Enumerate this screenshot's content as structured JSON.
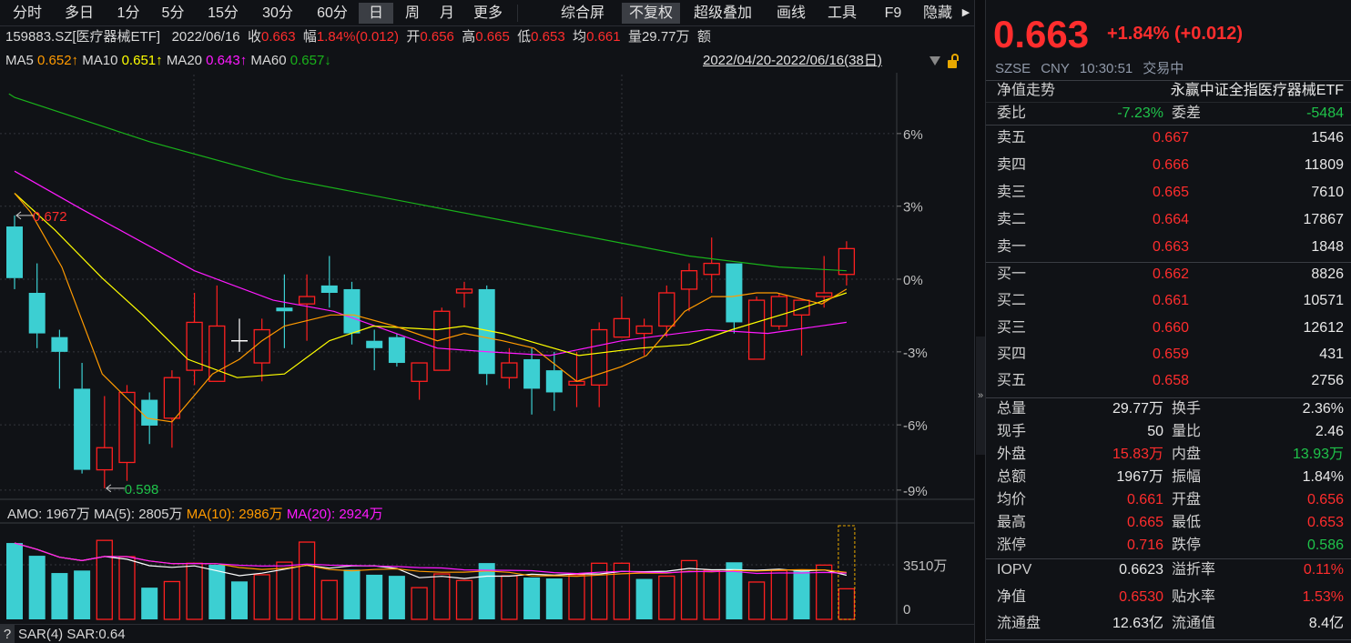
{
  "toolbar": {
    "items": [
      "分时",
      "多日",
      "1分",
      "5分",
      "15分",
      "30分",
      "60分",
      "日",
      "周",
      "月",
      "更多",
      "综合屏",
      "不复权",
      "超级叠加",
      "画线",
      "工具",
      "F9",
      "隐藏"
    ],
    "more_arrow": "▶"
  },
  "info": {
    "code": "159883.SZ[医疗器械ETF]",
    "date": "2022/06/16",
    "close_label": "收",
    "close": "0.663",
    "amp_label": "幅",
    "amp": "1.84%(0.012)",
    "open_label": "开",
    "open": "0.656",
    "high_label": "高",
    "high": "0.665",
    "low_label": "低",
    "low": "0.653",
    "avg_label": "均",
    "avg": "0.661",
    "vol_label": "量",
    "vol": "29.77万",
    "amt_label": "额"
  },
  "ma_legend": [
    {
      "name": "MA5",
      "value": "0.652↑",
      "color": "#ff9a00"
    },
    {
      "name": "MA10",
      "value": "0.651↑",
      "color": "#ffff00"
    },
    {
      "name": "MA20",
      "value": "0.643↑",
      "color": "#ff1aff"
    },
    {
      "name": "MA60",
      "value": "0.657↓",
      "color": "#19b21a"
    }
  ],
  "range_label": "2022/04/20-2022/06/16(38日)",
  "chart_data": {
    "type": "candlestick",
    "ylim": [
      0.5955,
      0.7102
    ],
    "y_ticks": [
      {
        "label": "6%",
        "price": 0.6942
      },
      {
        "label": "3%",
        "price": 0.6745
      },
      {
        "label": "0%",
        "price": 0.6547
      },
      {
        "label": "-3%",
        "price": 0.635
      },
      {
        "label": "-6%",
        "price": 0.6152
      },
      {
        "label": "-9%",
        "price": 0.5975
      }
    ],
    "candles": [
      [
        0.669,
        0.672,
        0.652,
        0.655
      ],
      [
        0.651,
        0.659,
        0.636,
        0.64
      ],
      [
        0.639,
        0.641,
        0.625,
        0.635
      ],
      [
        0.625,
        0.632,
        0.602,
        0.603
      ],
      [
        0.603,
        0.623,
        0.598,
        0.609
      ],
      [
        0.605,
        0.626,
        0.6,
        0.624
      ],
      [
        0.622,
        0.624,
        0.61,
        0.615
      ],
      [
        0.617,
        0.63,
        0.609,
        0.628
      ],
      [
        0.63,
        0.651,
        0.626,
        0.643
      ],
      [
        0.627,
        0.653,
        0.627,
        0.642
      ],
      [
        0.638,
        0.644,
        0.635,
        0.638
      ],
      [
        0.632,
        0.644,
        0.627,
        0.641
      ],
      [
        0.647,
        0.656,
        0.636,
        0.646
      ],
      [
        0.648,
        0.656,
        0.638,
        0.65
      ],
      [
        0.653,
        0.661,
        0.647,
        0.651
      ],
      [
        0.652,
        0.654,
        0.637,
        0.64
      ],
      [
        0.638,
        0.641,
        0.63,
        0.636
      ],
      [
        0.639,
        0.64,
        0.631,
        0.632
      ],
      [
        0.627,
        0.632,
        0.622,
        0.632
      ],
      [
        0.63,
        0.647,
        0.63,
        0.646
      ],
      [
        0.651,
        0.654,
        0.647,
        0.652
      ],
      [
        0.652,
        0.653,
        0.626,
        0.629
      ],
      [
        0.628,
        0.636,
        0.625,
        0.632
      ],
      [
        0.633,
        0.636,
        0.618,
        0.625
      ],
      [
        0.63,
        0.635,
        0.619,
        0.624
      ],
      [
        0.626,
        0.635,
        0.62,
        0.627
      ],
      [
        0.626,
        0.643,
        0.62,
        0.641
      ],
      [
        0.639,
        0.65,
        0.639,
        0.644
      ],
      [
        0.64,
        0.644,
        0.634,
        0.642
      ],
      [
        0.642,
        0.653,
        0.639,
        0.651
      ],
      [
        0.652,
        0.659,
        0.646,
        0.657
      ],
      [
        0.656,
        0.666,
        0.651,
        0.659
      ],
      [
        0.659,
        0.659,
        0.64,
        0.643
      ],
      [
        0.633,
        0.65,
        0.633,
        0.649
      ],
      [
        0.642,
        0.651,
        0.641,
        0.65
      ],
      [
        0.645,
        0.649,
        0.634,
        0.649
      ],
      [
        0.65,
        0.661,
        0.647,
        0.651
      ],
      [
        0.656,
        0.665,
        0.653,
        0.663
      ]
    ],
    "candle_fields": [
      "open",
      "high",
      "low",
      "close"
    ],
    "ma_lines": [
      {
        "name": "MA60",
        "color": "#19b21a",
        "points": [
          [
            -0.25,
            0.705
          ],
          [
            0,
            0.704
          ],
          [
            6,
            0.692
          ],
          [
            12,
            0.682
          ],
          [
            18,
            0.675
          ],
          [
            24,
            0.668
          ],
          [
            30,
            0.661
          ],
          [
            34,
            0.658
          ],
          [
            37,
            0.657
          ]
        ]
      },
      {
        "name": "MA20",
        "color": "#ff1aff",
        "points": [
          [
            0,
            0.684
          ],
          [
            2.9,
            0.674
          ],
          [
            8,
            0.657
          ],
          [
            11.5,
            0.649
          ],
          [
            14.2,
            0.646
          ],
          [
            18.8,
            0.636
          ],
          [
            21.1,
            0.635
          ],
          [
            23.8,
            0.634
          ],
          [
            27,
            0.638
          ],
          [
            30.8,
            0.641
          ],
          [
            33.5,
            0.64
          ],
          [
            37,
            0.643
          ]
        ]
      },
      {
        "name": "MA10",
        "color": "#ffff00",
        "points": [
          [
            0,
            0.678
          ],
          [
            1.8,
            0.668
          ],
          [
            3.9,
            0.655
          ],
          [
            5.7,
            0.645
          ],
          [
            7.7,
            0.633
          ],
          [
            9.9,
            0.628
          ],
          [
            12,
            0.629
          ],
          [
            14,
            0.638
          ],
          [
            15.95,
            0.642
          ],
          [
            18.8,
            0.641
          ],
          [
            20,
            0.642
          ],
          [
            21.7,
            0.64
          ],
          [
            25.1,
            0.634
          ],
          [
            27.8,
            0.636
          ],
          [
            30,
            0.637
          ],
          [
            31.9,
            0.641
          ],
          [
            34.6,
            0.646
          ],
          [
            37,
            0.651
          ]
        ]
      },
      {
        "name": "MA5",
        "color": "#ff9a00",
        "points": [
          [
            0,
            0.678
          ],
          [
            0.7,
            0.673
          ],
          [
            2.1,
            0.658
          ],
          [
            3.9,
            0.629
          ],
          [
            5.9,
            0.617
          ],
          [
            7,
            0.616
          ],
          [
            8.8,
            0.629
          ],
          [
            10,
            0.633
          ],
          [
            11,
            0.638
          ],
          [
            12,
            0.642
          ],
          [
            14.05,
            0.645
          ],
          [
            15.1,
            0.645
          ],
          [
            16.9,
            0.642
          ],
          [
            18.8,
            0.638
          ],
          [
            20,
            0.64
          ],
          [
            21.7,
            0.638
          ],
          [
            23.1,
            0.636
          ],
          [
            25,
            0.627
          ],
          [
            27,
            0.631
          ],
          [
            28.1,
            0.634
          ],
          [
            29.8,
            0.646
          ],
          [
            31,
            0.65
          ],
          [
            31.9,
            0.65
          ],
          [
            33,
            0.651
          ],
          [
            33.9,
            0.651
          ],
          [
            35.9,
            0.648
          ],
          [
            37,
            0.652
          ]
        ]
      }
    ],
    "annotations": {
      "high": {
        "label": "0.672",
        "index": 0,
        "price": 0.672
      },
      "low": {
        "label": "0.598",
        "index": 4,
        "price": 0.598
      }
    },
    "volume": {
      "ylim": [
        0,
        6025
      ],
      "tick_label": "3510万",
      "tick_value": 3510,
      "zero_label": "0",
      "unit": "万",
      "values": [
        4910,
        4090,
        2980,
        3140,
        5080,
        4030,
        2040,
        2430,
        3610,
        3510,
        2440,
        2870,
        3680,
        4970,
        2500,
        3200,
        2870,
        2800,
        2040,
        2920,
        2500,
        3620,
        2800,
        2690,
        2630,
        2870,
        3610,
        3610,
        2600,
        2780,
        3780,
        3160,
        3670,
        2400,
        3140,
        3200,
        3490,
        1967
      ]
    },
    "colors": {
      "up": "#ff2020",
      "down": "#3ccfd2",
      "flat": "#ffffff"
    }
  },
  "amo": {
    "amo": "AMO: 1967万",
    "ma5": "MA(5): 2805万",
    "ma10": "MA(10): 2986万",
    "ma20": "MA(20): 2924万"
  },
  "sar": {
    "q": "?",
    "label": "SAR(4)",
    "value": "SAR:0.64"
  },
  "quote": {
    "price": "0.663",
    "change": "+1.84% (+0.012)",
    "exchange": "SZSE",
    "currency": "CNY",
    "time": "10:30:51",
    "status": "交易中",
    "nav_trend": "净值走势",
    "fund_name": "永赢中证全指医疗器械ETF",
    "weibi_label": "委比",
    "weibi": "-7.23%",
    "weicha_label": "委差",
    "weicha": "-5484"
  },
  "sell": [
    {
      "label": "卖五",
      "price": "0.667",
      "vol": "1546"
    },
    {
      "label": "卖四",
      "price": "0.666",
      "vol": "11809"
    },
    {
      "label": "卖三",
      "price": "0.665",
      "vol": "7610"
    },
    {
      "label": "卖二",
      "price": "0.664",
      "vol": "17867"
    },
    {
      "label": "卖一",
      "price": "0.663",
      "vol": "1848"
    }
  ],
  "buy": [
    {
      "label": "买一",
      "price": "0.662",
      "vol": "8826"
    },
    {
      "label": "买二",
      "price": "0.661",
      "vol": "10571"
    },
    {
      "label": "买三",
      "price": "0.660",
      "vol": "12612"
    },
    {
      "label": "买四",
      "price": "0.659",
      "vol": "431"
    },
    {
      "label": "买五",
      "price": "0.658",
      "vol": "2756"
    }
  ],
  "stats": [
    {
      "l": "总量",
      "lv": "29.77万",
      "lc": "w",
      "r": "换手",
      "rv": "2.36%",
      "rc": "w"
    },
    {
      "l": "现手",
      "lv": "50",
      "lc": "w",
      "r": "量比",
      "rv": "2.46",
      "rc": "w"
    },
    {
      "l": "外盘",
      "lv": "15.83万",
      "lc": "red",
      "r": "内盘",
      "rv": "13.93万",
      "rc": "green"
    },
    {
      "l": "总额",
      "lv": "1967万",
      "lc": "w",
      "r": "振幅",
      "rv": "1.84%",
      "rc": "w"
    },
    {
      "l": "均价",
      "lv": "0.661",
      "lc": "red",
      "r": "开盘",
      "rv": "0.656",
      "rc": "red"
    },
    {
      "l": "最高",
      "lv": "0.665",
      "lc": "red",
      "r": "最低",
      "rv": "0.653",
      "rc": "red"
    },
    {
      "l": "涨停",
      "lv": "0.716",
      "lc": "red",
      "r": "跌停",
      "rv": "0.586",
      "rc": "green"
    }
  ],
  "fund": [
    {
      "l": "IOPV",
      "lv": "0.6623",
      "lc": "w",
      "r": "溢折率",
      "rv": "0.11%",
      "rc": "red"
    },
    {
      "l": "净值",
      "lv": "0.6530",
      "lc": "red",
      "r": "贴水率",
      "rv": "1.53%",
      "rc": "red"
    },
    {
      "l": "流通盘",
      "lv": "12.63亿",
      "lc": "w",
      "r": "流通值",
      "rv": "8.4亿",
      "rc": "w"
    }
  ],
  "collapse_icon": "»"
}
